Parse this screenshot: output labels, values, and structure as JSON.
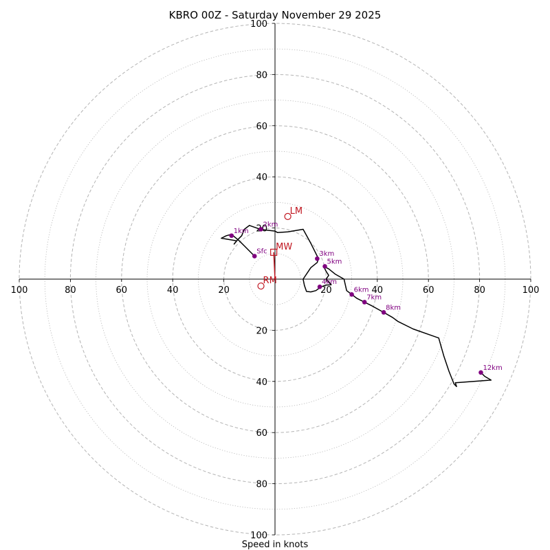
{
  "chart_data": {
    "type": "hodograph",
    "title": "KBRO 00Z - Saturday November 29 2025",
    "xlabel": "Speed in knots",
    "range": 100,
    "major_rings": [
      20,
      40,
      60,
      80,
      100
    ],
    "minor_rings": [
      10,
      30,
      50,
      70,
      90
    ],
    "x_ticks": [
      {
        "value": -100,
        "label": "100"
      },
      {
        "value": -80,
        "label": "80"
      },
      {
        "value": -60,
        "label": "60"
      },
      {
        "value": -40,
        "label": "40"
      },
      {
        "value": -20,
        "label": "20"
      },
      {
        "value": 20,
        "label": "20"
      },
      {
        "value": 40,
        "label": "40"
      },
      {
        "value": 60,
        "label": "60"
      },
      {
        "value": 80,
        "label": "80"
      },
      {
        "value": 100,
        "label": "100"
      }
    ],
    "y_ticks": [
      {
        "value": 100,
        "label": "100"
      },
      {
        "value": 80,
        "label": "80"
      },
      {
        "value": 60,
        "label": "60"
      },
      {
        "value": 40,
        "label": "40"
      },
      {
        "value": 20,
        "label": "20"
      },
      {
        "value": -20,
        "label": "20"
      },
      {
        "value": -40,
        "label": "40"
      },
      {
        "value": -60,
        "label": "60"
      },
      {
        "value": -80,
        "label": "80"
      },
      {
        "value": -100,
        "label": "100"
      }
    ],
    "trace": [
      [
        -8,
        9
      ],
      [
        -12,
        13
      ],
      [
        -14,
        15
      ],
      [
        -17,
        17.5
      ],
      [
        -19,
        17
      ],
      [
        -21,
        16
      ],
      [
        -15,
        15
      ],
      [
        -16,
        13.7
      ],
      [
        -14.5,
        15.5
      ],
      [
        -13,
        17
      ],
      [
        -12,
        19.5
      ],
      [
        -10,
        21
      ],
      [
        -5.5,
        19.4
      ],
      [
        0,
        18.8
      ],
      [
        1,
        18.2
      ],
      [
        5,
        18.5
      ],
      [
        11,
        19.5
      ],
      [
        14,
        14
      ],
      [
        17,
        8
      ],
      [
        16.5,
        6.5
      ],
      [
        14,
        4.5
      ],
      [
        11,
        0
      ],
      [
        11.5,
        -2.5
      ],
      [
        12.3,
        -4.8
      ],
      [
        14,
        -5
      ],
      [
        16,
        -4.5
      ],
      [
        18,
        -3
      ],
      [
        20,
        -2.3
      ],
      [
        22,
        -2.2
      ],
      [
        21,
        -1
      ],
      [
        20,
        0
      ],
      [
        21,
        1.5
      ],
      [
        20,
        3
      ],
      [
        19,
        5
      ],
      [
        21,
        4
      ],
      [
        23.5,
        2
      ],
      [
        27,
        0
      ],
      [
        28,
        -4.5
      ],
      [
        30,
        -6
      ],
      [
        32,
        -7.5
      ],
      [
        35,
        -9
      ],
      [
        38,
        -10.5
      ],
      [
        42.5,
        -13
      ],
      [
        46,
        -15
      ],
      [
        48,
        -16.5
      ],
      [
        54,
        -19.5
      ],
      [
        64,
        -23
      ],
      [
        66,
        -30
      ],
      [
        68,
        -36
      ],
      [
        70,
        -41
      ],
      [
        71,
        -42
      ],
      [
        70.5,
        -40.5
      ],
      [
        84.5,
        -39.5
      ],
      [
        82,
        -38
      ],
      [
        80.5,
        -36.5
      ]
    ],
    "height_labels": [
      {
        "label": "Sfc",
        "u": -8,
        "v": 9
      },
      {
        "label": "1km",
        "u": -17,
        "v": 17
      },
      {
        "label": "2km",
        "u": -5.5,
        "v": 19.5
      },
      {
        "label": "3km",
        "u": 16.5,
        "v": 8
      },
      {
        "label": "4km",
        "u": 17.5,
        "v": -3
      },
      {
        "label": "5km",
        "u": 19.5,
        "v": 5
      },
      {
        "label": "6km",
        "u": 30,
        "v": -6
      },
      {
        "label": "7km",
        "u": 35,
        "v": -9
      },
      {
        "label": "8km",
        "u": 42.5,
        "v": -13
      },
      {
        "label": "12km",
        "u": 80.5,
        "v": -36.5
      }
    ],
    "motion_markers": [
      {
        "label": "LM",
        "u": 5,
        "v": 24.5,
        "shape": "circle"
      },
      {
        "label": "MW",
        "u": -0.5,
        "v": 10.5,
        "shape": "square"
      },
      {
        "label": "RM",
        "u": -5.5,
        "v": -2.7,
        "shape": "circle"
      }
    ],
    "colors": {
      "ring": "#b3b3b3",
      "axis": "#000000",
      "trace": "#000000",
      "height_point": "#800080",
      "motion": "#c0151f"
    }
  }
}
